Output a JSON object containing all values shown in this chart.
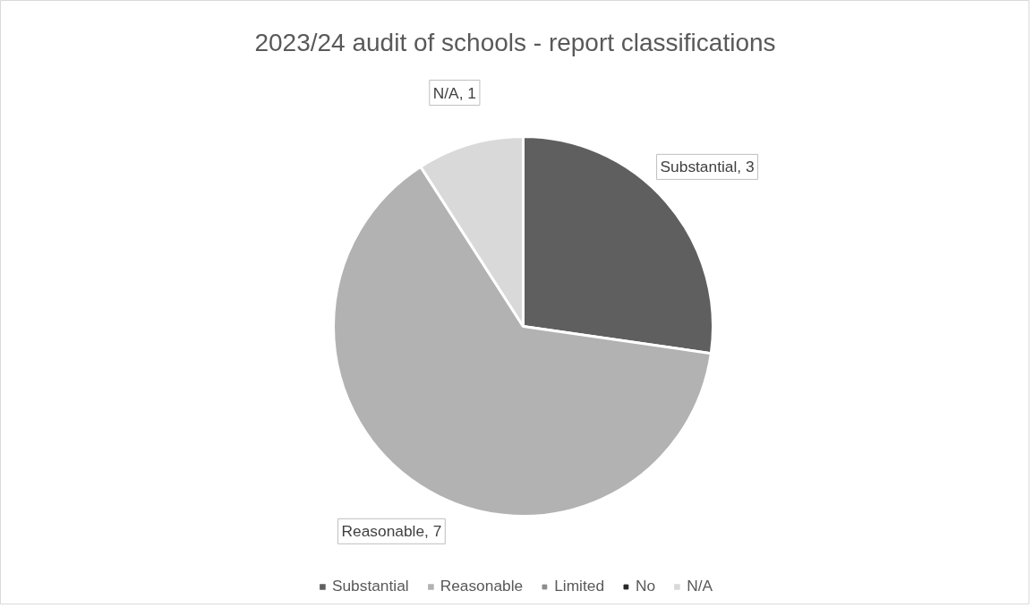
{
  "chart_data": {
    "type": "pie",
    "title": "2023/24 audit of schools - report classifications",
    "categories": [
      "Substantial",
      "Reasonable",
      "Limited",
      "No",
      "N/A"
    ],
    "values": [
      3,
      7,
      0,
      0,
      1
    ],
    "colors": [
      "#5f5f5f",
      "#b2b2b2",
      "#8c8c8c",
      "#262626",
      "#d9d9d9"
    ],
    "value_labels": [
      "Substantial, 3",
      "Reasonable, 7",
      null,
      null,
      "N/A, 1"
    ],
    "legend": "bottom"
  }
}
